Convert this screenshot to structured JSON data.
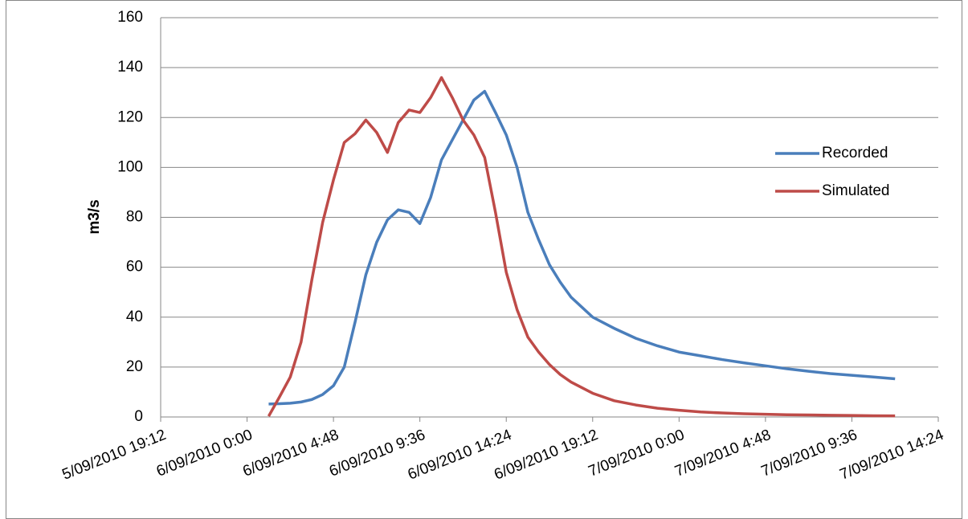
{
  "chart_data": {
    "type": "line",
    "y_label": "m3/s",
    "x": [
      40427.05,
      40427.075,
      40427.1,
      40427.125,
      40427.15,
      40427.175,
      40427.2,
      40427.225,
      40427.25,
      40427.275,
      40427.3,
      40427.325,
      40427.35,
      40427.375,
      40427.4,
      40427.425,
      40427.45,
      40427.475,
      40427.5,
      40427.525,
      40427.55,
      40427.575,
      40427.6,
      40427.625,
      40427.65,
      40427.675,
      40427.7,
      40427.725,
      40427.75,
      40427.8,
      40427.85,
      40427.9,
      40427.95,
      40428.0,
      40428.05,
      40428.1,
      40428.15,
      40428.2,
      40428.25,
      40428.3,
      40428.35,
      40428.4,
      40428.45,
      40428.5
    ],
    "series": [
      {
        "name": "Recorded",
        "color": "#4a7ebb",
        "values": [
          5.2,
          5.3,
          5.5,
          6,
          7,
          9,
          12.5,
          20,
          38,
          57,
          70,
          79,
          83,
          82,
          77.5,
          88,
          103,
          111,
          119,
          127,
          130.5,
          122,
          113,
          100,
          82,
          71,
          61,
          54,
          48,
          40,
          35.5,
          31.5,
          28.5,
          26,
          24.5,
          23,
          21.7,
          20.5,
          19.3,
          18.3,
          17.4,
          16.7,
          16,
          15.3
        ]
      },
      {
        "name": "Simulated",
        "color": "#be4b48",
        "values": [
          0.3,
          8,
          16,
          30,
          55,
          78,
          95,
          110,
          113.5,
          119,
          114,
          106,
          118,
          123,
          122,
          128,
          136,
          128,
          119,
          113,
          104,
          82,
          58,
          43,
          32,
          26,
          21,
          17,
          14,
          9.5,
          6.5,
          4.8,
          3.5,
          2.7,
          2,
          1.6,
          1.3,
          1.1,
          0.9,
          0.8,
          0.7,
          0.6,
          0.5,
          0.45
        ]
      }
    ],
    "xlim": [
      40426.8,
      40428.6
    ],
    "xticks": [
      {
        "value": 40426.8,
        "label": "5/09/2010 19:12"
      },
      {
        "value": 40427.0,
        "label": "6/09/2010 0:00"
      },
      {
        "value": 40427.2,
        "label": "6/09/2010 4:48"
      },
      {
        "value": 40427.4,
        "label": "6/09/2010 9:36"
      },
      {
        "value": 40427.6,
        "label": "6/09/2010 14:24"
      },
      {
        "value": 40427.8,
        "label": "6/09/2010 19:12"
      },
      {
        "value": 40428.0,
        "label": "7/09/2010 0:00"
      },
      {
        "value": 40428.2,
        "label": "7/09/2010 4:48"
      },
      {
        "value": 40428.4,
        "label": "7/09/2010 9:36"
      },
      {
        "value": 40428.6,
        "label": "7/09/2010 14:24"
      }
    ],
    "ylim": [
      0,
      160
    ],
    "yticks": [
      0,
      20,
      40,
      60,
      80,
      100,
      120,
      140,
      160
    ],
    "grid": true,
    "legend": "right"
  }
}
